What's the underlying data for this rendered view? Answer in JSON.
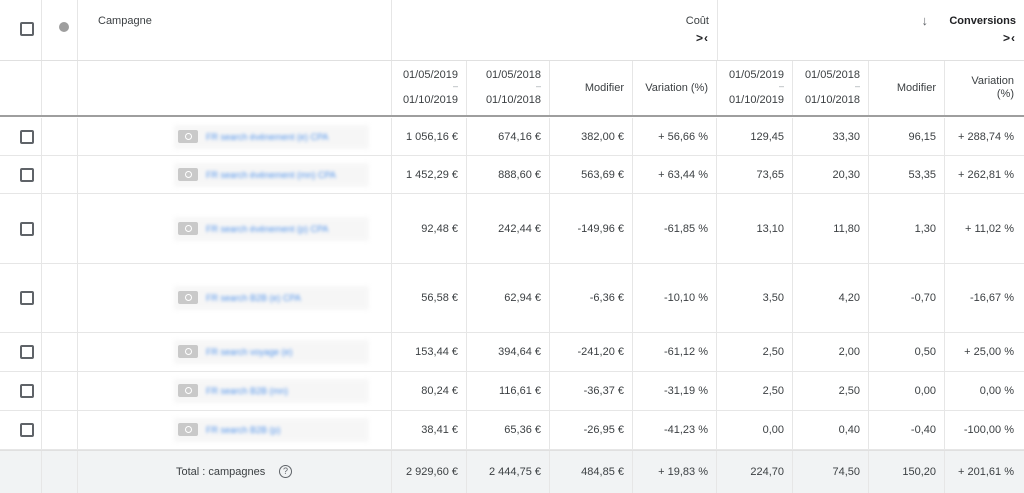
{
  "header": {
    "campaign_label": "Campagne",
    "cost_group": {
      "label": "Coût",
      "collapse_glyph": ">‹"
    },
    "conv_group": {
      "label": "Conversions",
      "sort_glyph": "↓",
      "collapse_glyph": ">‹"
    },
    "sub": {
      "cost_2019": {
        "line1": "01/05/2019",
        "dash": "–",
        "line2": "01/10/2019"
      },
      "cost_2018": {
        "line1": "01/05/2018",
        "dash": "–",
        "line2": "01/10/2018"
      },
      "cost_modifier": "Modifier",
      "cost_variation": "Variation (%)",
      "conv_2019": {
        "line1": "01/05/2019",
        "dash": "–",
        "line2": "01/10/2019"
      },
      "conv_2018": {
        "line1": "01/05/2018",
        "dash": "–",
        "line2": "01/10/2018"
      },
      "conv_modifier": "Modifier",
      "conv_variation_1": "Variation",
      "conv_variation_2": "(%)"
    }
  },
  "rows": [
    {
      "name": "FR search événement (e) CPA",
      "cost_2019": "1 056,16 €",
      "cost_2018": "674,16 €",
      "cost_mod": "382,00 €",
      "cost_var": "+ 56,66 %",
      "conv_2019": "129,45",
      "conv_2018": "33,30",
      "conv_mod": "96,15",
      "conv_var": "+ 288,74 %"
    },
    {
      "name": "FR search événement (mn) CPA",
      "cost_2019": "1 452,29 €",
      "cost_2018": "888,60 €",
      "cost_mod": "563,69 €",
      "cost_var": "+ 63,44 %",
      "conv_2019": "73,65",
      "conv_2018": "20,30",
      "conv_mod": "53,35",
      "conv_var": "+ 262,81 %"
    },
    {
      "name": "FR search événement (p) CPA",
      "cost_2019": "92,48 €",
      "cost_2018": "242,44 €",
      "cost_mod": "-149,96 €",
      "cost_var": "-61,85 %",
      "conv_2019": "13,10",
      "conv_2018": "11,80",
      "conv_mod": "1,30",
      "conv_var": "+ 11,02 %"
    },
    {
      "name": "FR search B2B (e) CPA",
      "cost_2019": "56,58 €",
      "cost_2018": "62,94 €",
      "cost_mod": "-6,36 €",
      "cost_var": "-10,10 %",
      "conv_2019": "3,50",
      "conv_2018": "4,20",
      "conv_mod": "-0,70",
      "conv_var": "-16,67 %"
    },
    {
      "name": "FR search voyage (e)",
      "cost_2019": "153,44 €",
      "cost_2018": "394,64 €",
      "cost_mod": "-241,20 €",
      "cost_var": "-61,12 %",
      "conv_2019": "2,50",
      "conv_2018": "2,00",
      "conv_mod": "0,50",
      "conv_var": "+ 25,00 %"
    },
    {
      "name": "FR search B2B (mn)",
      "cost_2019": "80,24 €",
      "cost_2018": "116,61 €",
      "cost_mod": "-36,37 €",
      "cost_var": "-31,19 %",
      "conv_2019": "2,50",
      "conv_2018": "2,50",
      "conv_mod": "0,00",
      "conv_var": "0,00 %"
    },
    {
      "name": "FR search B2B (p)",
      "cost_2019": "38,41 €",
      "cost_2018": "65,36 €",
      "cost_mod": "-26,95 €",
      "cost_var": "-41,23 %",
      "conv_2019": "0,00",
      "conv_2018": "0,40",
      "conv_mod": "-0,40",
      "conv_var": "-100,00 %"
    }
  ],
  "total": {
    "label": "Total : campagnes",
    "help_glyph": "?",
    "cost_2019": "2 929,60 €",
    "cost_2018": "2 444,75 €",
    "cost_mod": "484,85 €",
    "cost_var": "+ 19,83 %",
    "conv_2019": "224,70",
    "conv_2018": "74,50",
    "conv_mod": "150,20",
    "conv_var": "+ 201,61 %"
  },
  "colors": {
    "status_enabled": "#188038",
    "status_header": "#9e9e9e",
    "link": "#1a73e8"
  },
  "icons": [
    "checkbox-icon",
    "status-dot-icon",
    "campaign-type-icon",
    "help-icon",
    "sort-down-icon",
    "collapse-icon"
  ]
}
